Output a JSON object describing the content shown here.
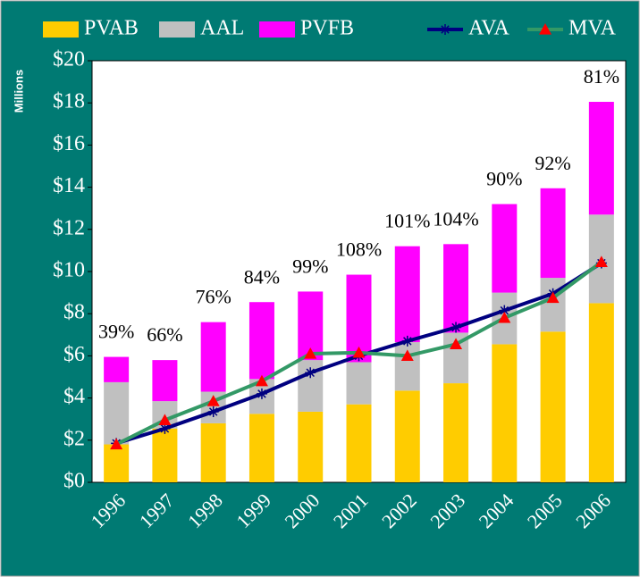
{
  "chart_data": {
    "type": "bar",
    "stacked": true,
    "y_label": "Millions",
    "categories": [
      "1996",
      "1997",
      "1998",
      "1999",
      "2000",
      "2001",
      "2002",
      "2003",
      "2004",
      "2005",
      "2006"
    ],
    "series": [
      {
        "name": "PVAB",
        "type": "bar",
        "color": "#ffcc00",
        "values": [
          1.8,
          2.55,
          2.8,
          3.25,
          3.35,
          3.7,
          4.35,
          4.7,
          6.55,
          7.15,
          8.5
        ]
      },
      {
        "name": "AAL",
        "type": "bar",
        "color": "#c0c0c0",
        "values": [
          2.95,
          1.3,
          1.5,
          1.65,
          2.45,
          2.0,
          2.3,
          2.4,
          2.45,
          2.55,
          4.2
        ]
      },
      {
        "name": "PVFB",
        "type": "bar",
        "color": "#ff00ff",
        "values": [
          1.2,
          1.95,
          3.3,
          3.65,
          3.25,
          4.15,
          4.55,
          4.2,
          4.2,
          4.25,
          5.35
        ]
      },
      {
        "name": "AVA",
        "type": "line",
        "color": "#000080",
        "marker": "star",
        "marker_color": "#000080",
        "values": [
          1.85,
          2.55,
          3.35,
          4.2,
          5.2,
          6.0,
          6.7,
          7.35,
          8.15,
          8.95,
          10.4
        ]
      },
      {
        "name": "MVA",
        "type": "line",
        "color": "#339966",
        "marker": "triangle",
        "marker_color": "#ff0000",
        "values": [
          1.8,
          2.95,
          3.85,
          4.8,
          6.1,
          6.15,
          6.0,
          6.55,
          7.8,
          8.75,
          10.45
        ]
      }
    ],
    "funded_ratio": {
      "values": [
        39,
        66,
        76,
        84,
        99,
        108,
        101,
        104,
        90,
        92,
        81
      ],
      "value_labels": [
        "39%",
        "66%",
        "76%",
        "84%",
        "99%",
        "108%",
        "101%",
        "104%",
        "90%",
        "92%",
        "81%"
      ]
    },
    "ylim": [
      0,
      20
    ],
    "yticks": [
      {
        "value": 0,
        "label": "$0"
      },
      {
        "value": 2,
        "label": "$2"
      },
      {
        "value": 4,
        "label": "$4"
      },
      {
        "value": 6,
        "label": "$6"
      },
      {
        "value": 8,
        "label": "$8"
      },
      {
        "value": 10,
        "label": "$10"
      },
      {
        "value": 12,
        "label": "$12"
      },
      {
        "value": 14,
        "label": "$14"
      },
      {
        "value": 16,
        "label": "$16"
      },
      {
        "value": 18,
        "label": "$18"
      },
      {
        "value": 20,
        "label": "$20"
      }
    ],
    "legend": "top"
  }
}
